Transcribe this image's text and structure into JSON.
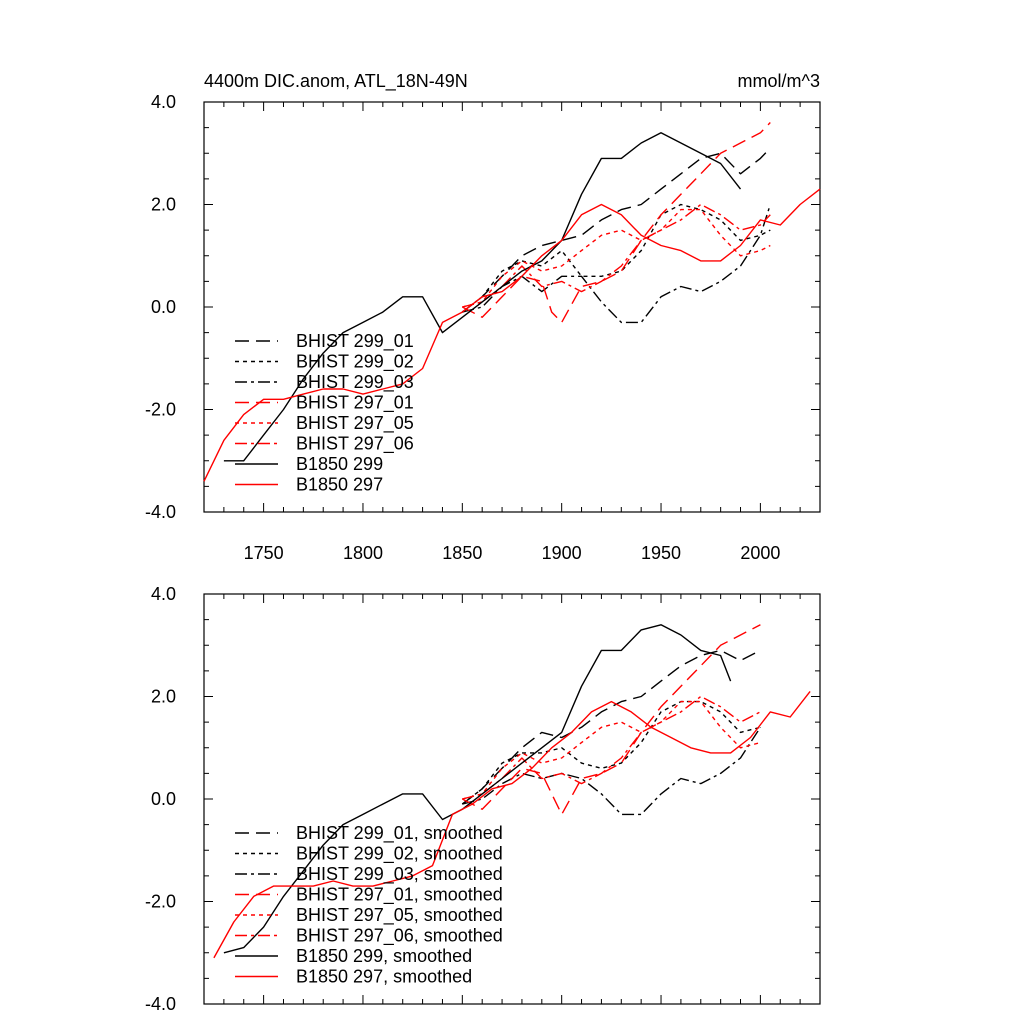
{
  "figure": {
    "title_left": "4400m DIC.anom, ATL_18N-49N",
    "title_right": "mmol/m^3"
  },
  "chart_data": [
    {
      "type": "line",
      "xlim": [
        1720,
        2030
      ],
      "ylim": [
        -4,
        4
      ],
      "yticks": [
        -4.0,
        -2.0,
        0.0,
        2.0,
        4.0
      ],
      "ytick_labels": [
        "-4.0",
        "-2.0",
        "0.0",
        "2.0",
        "4.0"
      ],
      "xticks": [
        1750,
        1800,
        1850,
        1900,
        1950,
        2000
      ],
      "xtick_labels": [
        "1750",
        "1800",
        "1850",
        "1900",
        "1950",
        "2000"
      ],
      "legend_position": "bottom-left",
      "series": [
        {
          "name": "BHIST 299_01",
          "color": "#000000",
          "style": "dash",
          "x": [
            1850,
            1860,
            1870,
            1880,
            1890,
            1900,
            1910,
            1920,
            1930,
            1940,
            1950,
            1960,
            1970,
            1980,
            1990,
            2000,
            2005
          ],
          "y": [
            -0.1,
            0.2,
            0.6,
            1.0,
            1.2,
            1.3,
            1.4,
            1.7,
            1.9,
            2.0,
            2.3,
            2.6,
            2.9,
            3.0,
            2.6,
            2.9,
            3.1
          ]
        },
        {
          "name": "BHIST 299_02",
          "color": "#000000",
          "style": "dot",
          "x": [
            1850,
            1860,
            1870,
            1880,
            1890,
            1900,
            1910,
            1920,
            1930,
            1940,
            1950,
            1960,
            1970,
            1980,
            1990,
            2000,
            2005
          ],
          "y": [
            -0.1,
            0.2,
            0.7,
            0.9,
            0.8,
            1.1,
            0.6,
            0.6,
            0.7,
            1.1,
            1.8,
            2.0,
            1.9,
            1.7,
            1.3,
            1.4,
            1.5
          ]
        },
        {
          "name": "BHIST 299_03",
          "color": "#000000",
          "style": "dashdot",
          "x": [
            1850,
            1860,
            1870,
            1880,
            1890,
            1900,
            1910,
            1920,
            1930,
            1940,
            1950,
            1960,
            1970,
            1980,
            1990,
            2000,
            2005
          ],
          "y": [
            -0.1,
            0.0,
            0.4,
            0.6,
            0.3,
            0.6,
            0.6,
            0.1,
            -0.3,
            -0.3,
            0.2,
            0.4,
            0.3,
            0.5,
            0.8,
            1.4,
            2.0
          ]
        },
        {
          "name": "BHIST 297_01",
          "color": "#ff0000",
          "style": "dash",
          "x": [
            1850,
            1860,
            1870,
            1880,
            1890,
            1895,
            1900,
            1910,
            1920,
            1930,
            1940,
            1950,
            1960,
            1970,
            1980,
            1990,
            2000,
            2005
          ],
          "y": [
            0.0,
            -0.2,
            0.2,
            0.6,
            0.5,
            -0.1,
            -0.3,
            0.4,
            0.5,
            0.7,
            1.3,
            1.8,
            2.2,
            2.6,
            3.0,
            3.2,
            3.4,
            3.6
          ]
        },
        {
          "name": "BHIST 297_05",
          "color": "#ff0000",
          "style": "dot",
          "x": [
            1850,
            1860,
            1870,
            1880,
            1890,
            1900,
            1910,
            1920,
            1930,
            1940,
            1950,
            1960,
            1970,
            1980,
            1990,
            2000,
            2005
          ],
          "y": [
            0.0,
            0.1,
            0.6,
            0.9,
            0.7,
            0.8,
            1.1,
            1.4,
            1.5,
            1.3,
            1.5,
            1.9,
            1.9,
            1.4,
            1.0,
            1.1,
            1.2
          ]
        },
        {
          "name": "BHIST 297_06",
          "color": "#ff0000",
          "style": "dashdot",
          "x": [
            1850,
            1860,
            1870,
            1880,
            1890,
            1900,
            1910,
            1920,
            1930,
            1940,
            1950,
            1960,
            1970,
            1980,
            1990,
            2000,
            2005
          ],
          "y": [
            0.0,
            0.1,
            0.4,
            0.8,
            0.4,
            0.5,
            0.3,
            0.5,
            0.8,
            1.3,
            1.5,
            1.7,
            2.0,
            1.8,
            1.5,
            1.6,
            1.8
          ]
        },
        {
          "name": "B1850 299",
          "color": "#000000",
          "style": "solid",
          "x": [
            1730,
            1740,
            1750,
            1760,
            1770,
            1780,
            1790,
            1800,
            1810,
            1820,
            1830,
            1840,
            1850,
            1860,
            1870,
            1880,
            1890,
            1900,
            1910,
            1920,
            1930,
            1940,
            1950,
            1960,
            1970,
            1980,
            1990
          ],
          "y": [
            -3.0,
            -3.0,
            -2.5,
            -2.0,
            -1.4,
            -0.9,
            -0.5,
            -0.3,
            -0.1,
            0.2,
            0.2,
            -0.5,
            -0.2,
            0.1,
            0.4,
            0.7,
            0.9,
            1.3,
            2.2,
            2.9,
            2.9,
            3.2,
            3.4,
            3.2,
            3.0,
            2.8,
            2.3
          ]
        },
        {
          "name": "B1850 297",
          "color": "#ff0000",
          "style": "solid",
          "x": [
            1720,
            1730,
            1740,
            1750,
            1760,
            1770,
            1780,
            1790,
            1800,
            1810,
            1820,
            1830,
            1840,
            1850,
            1860,
            1870,
            1880,
            1890,
            1900,
            1910,
            1920,
            1930,
            1940,
            1950,
            1960,
            1970,
            1980,
            1990,
            2000,
            2010,
            2020,
            2030
          ],
          "y": [
            -3.4,
            -2.6,
            -2.1,
            -1.8,
            -1.8,
            -1.7,
            -1.6,
            -1.6,
            -1.7,
            -1.6,
            -1.5,
            -1.2,
            -0.3,
            -0.1,
            0.2,
            0.3,
            0.6,
            1.0,
            1.3,
            1.8,
            2.0,
            1.8,
            1.4,
            1.2,
            1.1,
            0.9,
            0.9,
            1.2,
            1.7,
            1.6,
            2.0,
            2.3
          ]
        }
      ]
    },
    {
      "type": "line",
      "xlim": [
        1720,
        2030
      ],
      "ylim": [
        -4,
        4
      ],
      "yticks": [
        -4.0,
        -2.0,
        0.0,
        2.0,
        4.0
      ],
      "ytick_labels": [
        "-4.0",
        "-2.0",
        "0.0",
        "2.0",
        "4.0"
      ],
      "xticks": [
        1750,
        1800,
        1850,
        1900,
        1950,
        2000
      ],
      "legend_position": "bottom-left",
      "series": [
        {
          "name": "BHIST 299_01, smoothed",
          "color": "#000000",
          "style": "dash",
          "x": [
            1850,
            1860,
            1870,
            1880,
            1890,
            1900,
            1910,
            1920,
            1930,
            1940,
            1950,
            1960,
            1970,
            1980,
            1990,
            2000
          ],
          "y": [
            -0.1,
            0.2,
            0.6,
            1.0,
            1.3,
            1.2,
            1.4,
            1.7,
            1.9,
            2.0,
            2.3,
            2.6,
            2.8,
            2.9,
            2.7,
            2.9
          ]
        },
        {
          "name": "BHIST 299_02, smoothed",
          "color": "#000000",
          "style": "dot",
          "x": [
            1850,
            1860,
            1870,
            1880,
            1890,
            1900,
            1910,
            1920,
            1930,
            1940,
            1950,
            1960,
            1970,
            1980,
            1990,
            2000
          ],
          "y": [
            -0.1,
            0.2,
            0.7,
            0.9,
            0.9,
            1.0,
            0.7,
            0.6,
            0.7,
            1.1,
            1.7,
            1.9,
            1.9,
            1.7,
            1.3,
            1.4
          ]
        },
        {
          "name": "BHIST 299_03, smoothed",
          "color": "#000000",
          "style": "dashdot",
          "x": [
            1850,
            1860,
            1870,
            1880,
            1890,
            1900,
            1910,
            1920,
            1930,
            1940,
            1950,
            1960,
            1970,
            1980,
            1990,
            2000
          ],
          "y": [
            -0.1,
            0.0,
            0.3,
            0.5,
            0.4,
            0.5,
            0.4,
            0.1,
            -0.3,
            -0.3,
            0.1,
            0.4,
            0.3,
            0.5,
            0.8,
            1.4
          ]
        },
        {
          "name": "BHIST 297_01, smoothed",
          "color": "#ff0000",
          "style": "dash",
          "x": [
            1850,
            1860,
            1870,
            1880,
            1890,
            1900,
            1910,
            1920,
            1930,
            1940,
            1950,
            1960,
            1970,
            1980,
            1990,
            2000
          ],
          "y": [
            0.0,
            -0.2,
            0.2,
            0.6,
            0.5,
            -0.3,
            0.4,
            0.5,
            0.7,
            1.3,
            1.8,
            2.2,
            2.6,
            3.0,
            3.2,
            3.4
          ]
        },
        {
          "name": "BHIST 297_05, smoothed",
          "color": "#ff0000",
          "style": "dot",
          "x": [
            1850,
            1860,
            1870,
            1880,
            1890,
            1900,
            1910,
            1920,
            1930,
            1940,
            1950,
            1960,
            1970,
            1980,
            1990,
            2000
          ],
          "y": [
            0.0,
            0.1,
            0.6,
            0.9,
            0.7,
            0.8,
            1.1,
            1.4,
            1.5,
            1.3,
            1.5,
            1.9,
            1.9,
            1.4,
            1.0,
            1.1
          ]
        },
        {
          "name": "BHIST 297_06, smoothed",
          "color": "#ff0000",
          "style": "dashdot",
          "x": [
            1850,
            1860,
            1870,
            1880,
            1890,
            1900,
            1910,
            1920,
            1930,
            1940,
            1950,
            1960,
            1970,
            1980,
            1990,
            2000
          ],
          "y": [
            0.0,
            0.1,
            0.4,
            0.8,
            0.4,
            0.5,
            0.3,
            0.5,
            0.8,
            1.3,
            1.5,
            1.7,
            2.0,
            1.8,
            1.5,
            1.7
          ]
        },
        {
          "name": "B1850 299, smoothed",
          "color": "#000000",
          "style": "solid",
          "x": [
            1730,
            1740,
            1750,
            1760,
            1770,
            1780,
            1790,
            1800,
            1810,
            1820,
            1830,
            1840,
            1850,
            1860,
            1870,
            1880,
            1890,
            1900,
            1910,
            1920,
            1930,
            1940,
            1950,
            1960,
            1970,
            1980,
            1985
          ],
          "y": [
            -3.0,
            -2.9,
            -2.5,
            -1.9,
            -1.4,
            -0.9,
            -0.5,
            -0.3,
            -0.1,
            0.1,
            0.1,
            -0.4,
            -0.2,
            0.1,
            0.4,
            0.7,
            1.0,
            1.3,
            2.2,
            2.9,
            2.9,
            3.3,
            3.4,
            3.2,
            2.9,
            2.8,
            2.3
          ]
        },
        {
          "name": "B1850 297, smoothed",
          "color": "#ff0000",
          "style": "solid",
          "x": [
            1725,
            1735,
            1745,
            1755,
            1765,
            1775,
            1785,
            1795,
            1805,
            1815,
            1825,
            1835,
            1845,
            1855,
            1865,
            1875,
            1885,
            1895,
            1905,
            1915,
            1925,
            1935,
            1945,
            1955,
            1965,
            1975,
            1985,
            1995,
            2005,
            2015,
            2025
          ],
          "y": [
            -3.1,
            -2.4,
            -1.9,
            -1.7,
            -1.7,
            -1.7,
            -1.6,
            -1.7,
            -1.7,
            -1.6,
            -1.5,
            -1.3,
            -0.3,
            -0.1,
            0.2,
            0.3,
            0.6,
            1.0,
            1.3,
            1.7,
            1.9,
            1.7,
            1.4,
            1.2,
            1.0,
            0.9,
            0.9,
            1.2,
            1.7,
            1.6,
            2.1
          ]
        }
      ]
    }
  ]
}
